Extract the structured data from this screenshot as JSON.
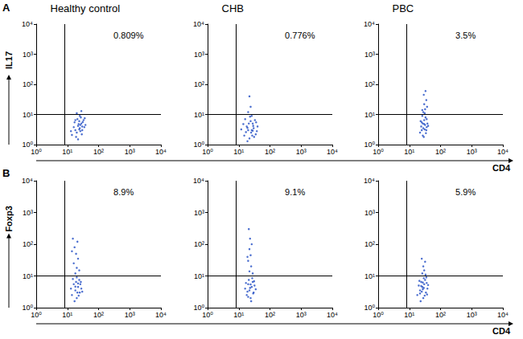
{
  "chart_data": [
    {
      "type": "scatter",
      "panel": "A",
      "title": "Healthy control",
      "y_label": "IL17",
      "annotation": "0.809%",
      "xlim": [
        1,
        10000
      ],
      "ylim": [
        1,
        10000
      ],
      "log": true,
      "grid": false,
      "color": "#2d56c7",
      "marker": "circle",
      "xticks": [
        {
          "value": 1,
          "label": "10⁰"
        },
        {
          "value": 10,
          "label": "10¹"
        },
        {
          "value": 100,
          "label": "10²"
        },
        {
          "value": 1000,
          "label": "10³"
        },
        {
          "value": 10000,
          "label": "10⁴"
        }
      ],
      "yticks": [
        {
          "value": 1,
          "label": "10⁰"
        },
        {
          "value": 10,
          "label": "10¹"
        },
        {
          "value": 100,
          "label": "10²"
        },
        {
          "value": 1000,
          "label": "10³"
        },
        {
          "value": 10000,
          "label": "10⁴"
        }
      ],
      "gate_x": 8,
      "gate_y": 10,
      "points": [
        [
          14,
          2.1
        ],
        [
          18,
          3.0
        ],
        [
          22,
          4.2
        ],
        [
          25,
          3.5
        ],
        [
          28,
          5.0
        ],
        [
          20,
          2.5
        ],
        [
          30,
          4.0
        ],
        [
          24,
          6.0
        ],
        [
          17,
          5.5
        ],
        [
          33,
          6.5
        ],
        [
          26,
          2.8
        ],
        [
          21,
          7.0
        ],
        [
          35,
          3.8
        ],
        [
          19,
          1.8
        ],
        [
          29,
          2.2
        ],
        [
          23,
          4.8
        ],
        [
          27,
          8.0
        ],
        [
          16,
          3.8
        ],
        [
          31,
          5.6
        ],
        [
          38,
          4.5
        ],
        [
          22,
          1.5
        ],
        [
          25,
          9.0
        ],
        [
          36,
          7.5
        ],
        [
          13,
          2.8
        ],
        [
          20,
          11
        ],
        [
          28,
          13
        ],
        [
          24,
          3.2
        ],
        [
          26,
          4.5
        ],
        [
          30,
          3.0
        ],
        [
          18,
          6.5
        ]
      ]
    },
    {
      "type": "scatter",
      "title": "CHB",
      "annotation": "0.776%",
      "xlim": [
        1,
        10000
      ],
      "ylim": [
        1,
        10000
      ],
      "log": true,
      "grid": false,
      "color": "#2d56c7",
      "marker": "circle",
      "xticks": [
        {
          "value": 1,
          "label": "10⁰"
        },
        {
          "value": 10,
          "label": "10¹"
        },
        {
          "value": 100,
          "label": "10²"
        },
        {
          "value": 1000,
          "label": "10³"
        },
        {
          "value": 10000,
          "label": "10⁴"
        }
      ],
      "yticks": [
        {
          "value": 1,
          "label": "10⁰"
        },
        {
          "value": 10,
          "label": "10¹"
        },
        {
          "value": 100,
          "label": "10²"
        },
        {
          "value": 1000,
          "label": "10³"
        },
        {
          "value": 10000,
          "label": "10⁴"
        }
      ],
      "gate_x": 8,
      "gate_y": 10,
      "points": [
        [
          15,
          2.0
        ],
        [
          20,
          3.0
        ],
        [
          25,
          2.5
        ],
        [
          18,
          4.0
        ],
        [
          30,
          3.5
        ],
        [
          22,
          1.6
        ],
        [
          28,
          5.0
        ],
        [
          35,
          2.2
        ],
        [
          12,
          3.2
        ],
        [
          24,
          6.0
        ],
        [
          40,
          4.0
        ],
        [
          19,
          1.3
        ],
        [
          27,
          2.0
        ],
        [
          33,
          6.5
        ],
        [
          21,
          5.0
        ],
        [
          16,
          7.0
        ],
        [
          26,
          3.0
        ],
        [
          38,
          2.8
        ],
        [
          23,
          8.5
        ],
        [
          29,
          4.2
        ],
        [
          14,
          4.8
        ],
        [
          31,
          1.8
        ],
        [
          20,
          12
        ],
        [
          24,
          18
        ],
        [
          22,
          40
        ],
        [
          17,
          2.6
        ],
        [
          36,
          5.5
        ],
        [
          26,
          9
        ],
        [
          19,
          3.6
        ],
        [
          28,
          2.9
        ]
      ]
    },
    {
      "type": "scatter",
      "title": "PBC",
      "x_label": "CD4",
      "annotation": "3.5%",
      "xlim": [
        1,
        10000
      ],
      "ylim": [
        1,
        10000
      ],
      "log": true,
      "grid": false,
      "color": "#2d56c7",
      "marker": "circle",
      "xticks": [
        {
          "value": 1,
          "label": "10⁰"
        },
        {
          "value": 10,
          "label": "10¹"
        },
        {
          "value": 100,
          "label": "10²"
        },
        {
          "value": 1000,
          "label": "10³"
        },
        {
          "value": 10000,
          "label": "10⁴"
        }
      ],
      "yticks": [
        {
          "value": 1,
          "label": "10⁰"
        },
        {
          "value": 10,
          "label": "10¹"
        },
        {
          "value": 100,
          "label": "10²"
        },
        {
          "value": 1000,
          "label": "10³"
        },
        {
          "value": 10000,
          "label": "10⁴"
        }
      ],
      "gate_x": 8,
      "gate_y": 10,
      "points": [
        [
          22,
          2.5
        ],
        [
          28,
          3.5
        ],
        [
          32,
          4.5
        ],
        [
          25,
          5.5
        ],
        [
          35,
          3.0
        ],
        [
          30,
          6.5
        ],
        [
          27,
          2.0
        ],
        [
          38,
          5.0
        ],
        [
          24,
          4.0
        ],
        [
          33,
          8.0
        ],
        [
          29,
          1.8
        ],
        [
          36,
          7.0
        ],
        [
          26,
          9.0
        ],
        [
          31,
          3.2
        ],
        [
          40,
          4.2
        ],
        [
          23,
          6.0
        ],
        [
          34,
          2.4
        ],
        [
          28,
          12
        ],
        [
          32,
          15
        ],
        [
          30,
          22
        ],
        [
          35,
          30
        ],
        [
          29,
          45
        ],
        [
          33,
          60
        ],
        [
          37,
          18
        ],
        [
          26,
          14
        ],
        [
          31,
          11
        ],
        [
          27,
          5.0
        ],
        [
          36,
          3.8
        ],
        [
          30,
          4.8
        ],
        [
          25,
          3.0
        ]
      ]
    },
    {
      "type": "scatter",
      "panel": "B",
      "y_label": "Foxp3",
      "annotation": "8.9%",
      "xlim": [
        1,
        10000
      ],
      "ylim": [
        1,
        10000
      ],
      "log": true,
      "grid": false,
      "color": "#2d56c7",
      "marker": "circle",
      "xticks": [
        {
          "value": 1,
          "label": "10⁰"
        },
        {
          "value": 10,
          "label": "10¹"
        },
        {
          "value": 100,
          "label": "10²"
        },
        {
          "value": 1000,
          "label": "10³"
        },
        {
          "value": 10000,
          "label": "10⁴"
        }
      ],
      "yticks": [
        {
          "value": 1,
          "label": "10⁰"
        },
        {
          "value": 10,
          "label": "10¹"
        },
        {
          "value": 100,
          "label": "10²"
        },
        {
          "value": 1000,
          "label": "10³"
        },
        {
          "value": 10000,
          "label": "10⁴"
        }
      ],
      "gate_x": 8,
      "gate_y": 10,
      "points": [
        [
          14,
          2.5
        ],
        [
          18,
          3.5
        ],
        [
          22,
          4.5
        ],
        [
          25,
          3.0
        ],
        [
          16,
          5.5
        ],
        [
          20,
          2.0
        ],
        [
          28,
          4.0
        ],
        [
          19,
          6.5
        ],
        [
          24,
          7.5
        ],
        [
          15,
          8.0
        ],
        [
          21,
          3.0
        ],
        [
          26,
          5.5
        ],
        [
          17,
          1.6
        ],
        [
          30,
          3.2
        ],
        [
          23,
          2.4
        ],
        [
          13,
          4.0
        ],
        [
          18,
          12
        ],
        [
          20,
          18
        ],
        [
          16,
          25
        ],
        [
          22,
          35
        ],
        [
          19,
          50
        ],
        [
          17,
          80
        ],
        [
          21,
          120
        ],
        [
          15,
          150
        ],
        [
          24,
          15
        ],
        [
          14,
          60
        ],
        [
          20,
          9
        ],
        [
          27,
          6.5
        ],
        [
          18,
          4.6
        ],
        [
          22,
          5.8
        ]
      ]
    },
    {
      "type": "scatter",
      "annotation": "9.1%",
      "xlim": [
        1,
        10000
      ],
      "ylim": [
        1,
        10000
      ],
      "log": true,
      "grid": false,
      "color": "#2d56c7",
      "marker": "circle",
      "xticks": [
        {
          "value": 1,
          "label": "10⁰"
        },
        {
          "value": 10,
          "label": "10¹"
        },
        {
          "value": 100,
          "label": "10²"
        },
        {
          "value": 1000,
          "label": "10³"
        },
        {
          "value": 10000,
          "label": "10⁴"
        }
      ],
      "yticks": [
        {
          "value": 1,
          "label": "10⁰"
        },
        {
          "value": 10,
          "label": "10¹"
        },
        {
          "value": 100,
          "label": "10²"
        },
        {
          "value": 1000,
          "label": "10³"
        },
        {
          "value": 10000,
          "label": "10⁴"
        }
      ],
      "gate_x": 8,
      "gate_y": 10,
      "points": [
        [
          18,
          2.5
        ],
        [
          22,
          3.5
        ],
        [
          26,
          4.5
        ],
        [
          20,
          5.5
        ],
        [
          30,
          3.0
        ],
        [
          24,
          2.0
        ],
        [
          28,
          6.5
        ],
        [
          16,
          4.0
        ],
        [
          32,
          5.0
        ],
        [
          21,
          7.5
        ],
        [
          25,
          1.6
        ],
        [
          19,
          3.2
        ],
        [
          27,
          8.5
        ],
        [
          23,
          4.2
        ],
        [
          35,
          3.8
        ],
        [
          17,
          6.0
        ],
        [
          22,
          14
        ],
        [
          25,
          20
        ],
        [
          20,
          30
        ],
        [
          24,
          45
        ],
        [
          22,
          70
        ],
        [
          26,
          100
        ],
        [
          23,
          150
        ],
        [
          21,
          300
        ],
        [
          28,
          12
        ],
        [
          19,
          40
        ],
        [
          29,
          2.8
        ],
        [
          24,
          5.4
        ],
        [
          20,
          2.2
        ],
        [
          31,
          6.8
        ]
      ]
    },
    {
      "type": "scatter",
      "x_label": "CD4",
      "annotation": "5.9%",
      "xlim": [
        1,
        10000
      ],
      "ylim": [
        1,
        10000
      ],
      "log": true,
      "grid": false,
      "color": "#2d56c7",
      "marker": "circle",
      "xticks": [
        {
          "value": 1,
          "label": "10⁰"
        },
        {
          "value": 10,
          "label": "10¹"
        },
        {
          "value": 100,
          "label": "10²"
        },
        {
          "value": 1000,
          "label": "10³"
        },
        {
          "value": 10000,
          "label": "10⁴"
        }
      ],
      "yticks": [
        {
          "value": 1,
          "label": "10⁰"
        },
        {
          "value": 10,
          "label": "10¹"
        },
        {
          "value": 100,
          "label": "10²"
        },
        {
          "value": 1000,
          "label": "10³"
        },
        {
          "value": 10000,
          "label": "10⁴"
        }
      ],
      "gate_x": 8,
      "gate_y": 10,
      "points": [
        [
          18,
          2.5
        ],
        [
          22,
          3.5
        ],
        [
          26,
          4.5
        ],
        [
          30,
          5.5
        ],
        [
          34,
          3.0
        ],
        [
          24,
          6.5
        ],
        [
          28,
          2.0
        ],
        [
          38,
          4.0
        ],
        [
          20,
          5.0
        ],
        [
          32,
          7.5
        ],
        [
          25,
          3.2
        ],
        [
          36,
          6.0
        ],
        [
          29,
          8.5
        ],
        [
          23,
          1.6
        ],
        [
          40,
          5.2
        ],
        [
          27,
          3.8
        ],
        [
          31,
          2.4
        ],
        [
          21,
          7.0
        ],
        [
          35,
          9.0
        ],
        [
          26,
          12
        ],
        [
          30,
          15
        ],
        [
          28,
          20
        ],
        [
          32,
          28
        ],
        [
          25,
          35
        ],
        [
          33,
          11
        ],
        [
          24,
          4.8
        ],
        [
          29,
          4.2
        ],
        [
          27,
          6.2
        ],
        [
          22,
          2.8
        ],
        [
          37,
          2.6
        ]
      ]
    }
  ]
}
